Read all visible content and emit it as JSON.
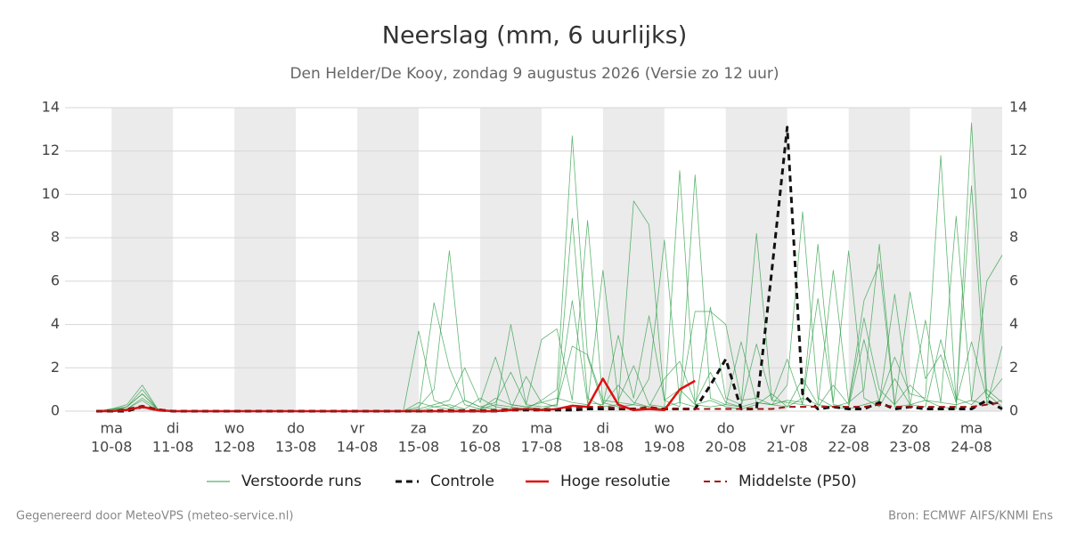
{
  "chart_data": {
    "type": "line",
    "title": "Neerslag (mm, 6 uurlijks)",
    "subtitle": "Den Helder/De Kooy, zondag  9 augustus 2026 (Versie zo 12 uur)",
    "footer_left": "Gegenereerd door MeteoVPS (meteo-service.nl)",
    "footer_right": "Bron: ECMWF AIFS/KNMI Ens",
    "categories": [
      null,
      "ma",
      null,
      null,
      null,
      "di",
      null,
      null,
      null,
      "wo",
      null,
      null,
      null,
      "do",
      null,
      null,
      null,
      "vr",
      null,
      null,
      null,
      "za",
      null,
      null,
      null,
      "zo",
      null,
      null,
      null,
      "ma",
      null,
      null,
      null,
      "di",
      null,
      null,
      null,
      "wo",
      null,
      null,
      null,
      "do",
      null,
      null,
      null,
      "vr",
      null,
      null,
      null,
      "za",
      null,
      null,
      null,
      "zo",
      null,
      null,
      null,
      "ma",
      null,
      null
    ],
    "category_dates": [
      null,
      "10-08",
      null,
      null,
      null,
      "11-08",
      null,
      null,
      null,
      "12-08",
      null,
      null,
      null,
      "13-08",
      null,
      null,
      null,
      "14-08",
      null,
      null,
      null,
      "15-08",
      null,
      null,
      null,
      "16-08",
      null,
      null,
      null,
      "17-08",
      null,
      null,
      null,
      "18-08",
      null,
      null,
      null,
      "19-08",
      null,
      null,
      null,
      "20-08",
      null,
      null,
      null,
      "21-08",
      null,
      null,
      null,
      "22-08",
      null,
      null,
      null,
      "23-08",
      null,
      null,
      null,
      "24-08",
      null,
      null
    ],
    "ylim": [
      0,
      14
    ],
    "yticks": [
      0,
      2,
      4,
      6,
      8,
      10,
      12,
      14
    ],
    "grid": true,
    "legend": "bottom",
    "series": [
      {
        "name": "Verstoorde runs",
        "color": "#2e9e45",
        "dashed": false,
        "values": [
          [
            0,
            0.1,
            0.3,
            1.2,
            0.1,
            0,
            0,
            0,
            0,
            0,
            0,
            0,
            0,
            0,
            0,
            0,
            0,
            0,
            0,
            0,
            0,
            3.7,
            0.5,
            0.2,
            0,
            0.1,
            0.3,
            0.2,
            0.1,
            0.5,
            1.0,
            12.7,
            2.5,
            0.3,
            1.2,
            0.4,
            0.2,
            0.1,
            11.1,
            0.3,
            0.5,
            0.2,
            0.1,
            0.3,
            0.8,
            0.2,
            1.5,
            0.3,
            0.2,
            0.4,
            1.0,
            7.7,
            0.3,
            1.2,
            0.5,
            0.2,
            0.1,
            13.3,
            0.8,
            0.2
          ],
          [
            0,
            0.1,
            0.2,
            0.8,
            0.1,
            0,
            0,
            0,
            0,
            0,
            0,
            0,
            0,
            0,
            0,
            0,
            0,
            0,
            0,
            0,
            0,
            0,
            5.0,
            2.0,
            0.3,
            0.1,
            0.6,
            0.3,
            0.2,
            0.1,
            0.3,
            8.9,
            0.6,
            0.2,
            0.3,
            9.7,
            8.6,
            0.5,
            0.2,
            10.9,
            0.6,
            0.3,
            0.2,
            0.4,
            0.3,
            1.2,
            9.2,
            0.6,
            0.2,
            0.1,
            0.3,
            0.5,
            2.5,
            0.8,
            0.6,
            11.8,
            0.4,
            10.4,
            0.3,
            0.5
          ],
          [
            0,
            0,
            0.1,
            0.6,
            0.1,
            0,
            0,
            0,
            0,
            0,
            0,
            0,
            0,
            0,
            0,
            0,
            0,
            0,
            0,
            0,
            0,
            0.2,
            1.0,
            7.4,
            0.5,
            0.2,
            0.1,
            4.0,
            0.3,
            3.3,
            3.8,
            0.5,
            8.8,
            0.4,
            0.2,
            0.3,
            1.5,
            7.9,
            0.4,
            0.2,
            4.8,
            0.6,
            0.3,
            8.2,
            0.5,
            0.4,
            0.3,
            7.7,
            0.4,
            7.4,
            0.6,
            0.2,
            1.5,
            0.3,
            4.2,
            0.4,
            0.3,
            0.5,
            6.0,
            7.2
          ],
          [
            0,
            0.05,
            0.2,
            1.0,
            0.1,
            0,
            0,
            0,
            0,
            0,
            0,
            0,
            0,
            0,
            0,
            0,
            0,
            0,
            0,
            0,
            0,
            0.1,
            0.3,
            0.5,
            2.0,
            0.4,
            2.5,
            0.3,
            0.2,
            0.4,
            0.6,
            0.4,
            0.3,
            6.5,
            0.5,
            2.1,
            0.3,
            0.2,
            0.4,
            4.6,
            4.6,
            4.0,
            0.5,
            0.6,
            0.3,
            0.5,
            0.4,
            5.2,
            0.3,
            0.2,
            3.3,
            0.4,
            5.4,
            0.3,
            0.2,
            3.3,
            0.6,
            0.3,
            1.0,
            0.4
          ],
          [
            0,
            0.1,
            0.1,
            0.5,
            0,
            0,
            0,
            0,
            0,
            0,
            0,
            0,
            0,
            0,
            0,
            0,
            0,
            0,
            0,
            0,
            0,
            0,
            0.2,
            0.3,
            0.1,
            0.6,
            0.2,
            0.1,
            1.6,
            0.4,
            0.2,
            5.1,
            0.4,
            0.3,
            3.5,
            0.6,
            4.4,
            0.5,
            1.0,
            0.3,
            0.2,
            0.3,
            3.2,
            0.4,
            0.3,
            0.2,
            0.6,
            0.3,
            6.5,
            0.4,
            5.1,
            6.8,
            0.2,
            0.3,
            0.5,
            0.4,
            9.0,
            0.5,
            0.3,
            3.0
          ],
          [
            0,
            0,
            0.2,
            0.8,
            0.1,
            0,
            0,
            0,
            0,
            0,
            0,
            0,
            0,
            0,
            0,
            0,
            0,
            0,
            0,
            0,
            0,
            0.4,
            0.2,
            0.1,
            0.5,
            0.2,
            0.4,
            1.8,
            0.3,
            0.2,
            0.3,
            3.0,
            2.6,
            0.5,
            0.4,
            0.3,
            0.2,
            1.5,
            2.3,
            0.4,
            1.8,
            0.4,
            0.2,
            3.1,
            0.5,
            2.4,
            0.3,
            0.2,
            1.2,
            0.3,
            4.3,
            1.0,
            0.3,
            5.5,
            1.5,
            2.6,
            0.4,
            3.2,
            0.6,
            1.5
          ]
        ]
      },
      {
        "name": "Controle",
        "color": "#111111",
        "dashed": true,
        "values": [
          0,
          0,
          0,
          0.2,
          0.05,
          0,
          0,
          0,
          0,
          0,
          0,
          0,
          0,
          0,
          0,
          0,
          0,
          0,
          0,
          0,
          0,
          0,
          0,
          0,
          0,
          0,
          0,
          0.05,
          0.05,
          0.05,
          0.05,
          0.05,
          0.1,
          0.1,
          0.1,
          0.1,
          0.1,
          0.1,
          0.1,
          0.1,
          1.2,
          2.4,
          0.1,
          0.1,
          6.5,
          13.1,
          0.8,
          0.1,
          0.2,
          0.1,
          0.1,
          0.4,
          0.1,
          0.2,
          0.1,
          0.1,
          0.1,
          0.1,
          0.5,
          0.1
        ]
      },
      {
        "name": "Hoge resolutie",
        "color": "#e01010",
        "dashed": false,
        "values": [
          0,
          0,
          0.05,
          0.2,
          0.05,
          0,
          0,
          0,
          0,
          0,
          0,
          0,
          0,
          0,
          0,
          0,
          0,
          0,
          0,
          0,
          0,
          0,
          0,
          0,
          0,
          0,
          0,
          0.05,
          0.1,
          0.05,
          0.1,
          0.25,
          0.2,
          1.5,
          0.3,
          0.05,
          0.1,
          0.05,
          1.0,
          1.4,
          null,
          null,
          null,
          null,
          null,
          null,
          null,
          null,
          null,
          null,
          null,
          null,
          null,
          null,
          null,
          null,
          null,
          null,
          null,
          null
        ]
      },
      {
        "name": "Middelste (P50)",
        "color": "#a01010",
        "dashed": true,
        "values": [
          0,
          0,
          0.1,
          0.25,
          0.1,
          0,
          0,
          0,
          0,
          0,
          0,
          0,
          0,
          0,
          0,
          0,
          0,
          0,
          0,
          0,
          0,
          0,
          0.05,
          0.05,
          0.05,
          0.05,
          0.05,
          0.1,
          0.1,
          0.1,
          0.1,
          0.15,
          0.2,
          0.2,
          0.15,
          0.1,
          0.2,
          0.1,
          0.1,
          0.1,
          0.1,
          0.1,
          0.1,
          0.1,
          0.1,
          0.2,
          0.2,
          0.2,
          0.2,
          0.2,
          0.2,
          0.3,
          0.2,
          0.2,
          0.2,
          0.2,
          0.2,
          0.2,
          0.3,
          0.4
        ]
      }
    ]
  }
}
